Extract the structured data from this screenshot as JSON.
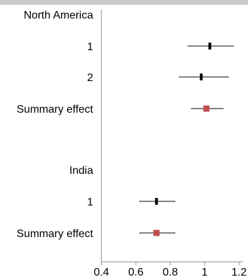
{
  "chart_data": {
    "type": "forest",
    "title": "",
    "xlabel": "",
    "ylabel": "",
    "xlim": [
      0.4,
      1.2
    ],
    "x_ticks": [
      0.4,
      0.6,
      0.8,
      1,
      1.2
    ],
    "x_tick_labels": [
      "0.4",
      "0.6",
      "0.8",
      "1",
      "1.2"
    ],
    "grid": false,
    "legend": "none",
    "groups": [
      {
        "label": "North America",
        "rows": [
          {
            "label": "1",
            "estimate": 1.03,
            "lower": 0.9,
            "upper": 1.17,
            "kind": "study"
          },
          {
            "label": "2",
            "estimate": 0.98,
            "lower": 0.85,
            "upper": 1.14,
            "kind": "study"
          },
          {
            "label": "Summary effect",
            "estimate": 1.01,
            "lower": 0.92,
            "upper": 1.11,
            "kind": "summary"
          }
        ]
      },
      {
        "label": "India",
        "rows": [
          {
            "label": "1",
            "estimate": 0.72,
            "lower": 0.62,
            "upper": 0.83,
            "kind": "study"
          },
          {
            "label": "Summary effect",
            "estimate": 0.72,
            "lower": 0.62,
            "upper": 0.83,
            "kind": "summary"
          }
        ]
      }
    ],
    "colors": {
      "study_marker": "#000000",
      "summary_marker": "#c0504d",
      "ci_line": "#000000",
      "axis": "#888888"
    }
  }
}
